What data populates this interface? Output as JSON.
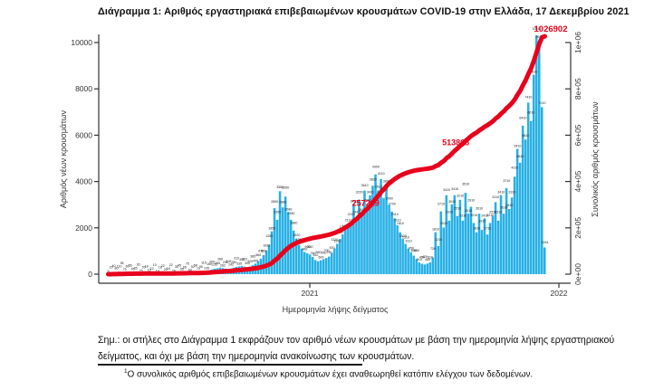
{
  "page": {
    "title": "Διάγραμμα 1: Αριθμός εργαστηριακά επιβεβαιωμένων κρουσμάτων COVID-19 στην Ελλάδα, 17 Δεκεμβρίου 2021",
    "note": "Σημ.: οι στήλες στο Διάγραμμα 1 εκφράζουν τον αριθμό νέων κρουσμάτων με βάση την ημερομηνία λήψης εργαστηριακού δείγματος, και όχι με βάση την ημερομηνία ανακοίνωσης των κρουσμάτων.",
    "footnote_sup": "1",
    "footnote_text": "Ο συνολικός αριθμός επιβεβαιωμένων κρουσμάτων έχει αναθεωρηθεί κατόπιν ελέγχου των δεδομένων."
  },
  "colors": {
    "bar": "#28b0e6",
    "line": "#e8001c",
    "bar_label": "#1a1a1a",
    "axis_text": "#333333",
    "axis_line": "#333333",
    "annotation": "#e8001c"
  },
  "chart_data": {
    "type": "bar+line",
    "xlabel": "Ημερομηνία λήψης δείγματος",
    "ylabel_left": "Αριθμός νέων κρουσμάτων",
    "ylabel_right": "Συνολικός αριθμός κρουσμάτων",
    "x_axis": {
      "ticks": [
        "2021",
        "2022"
      ]
    },
    "left_axis": {
      "max": 10000,
      "ticks": [
        "0",
        "2000",
        "4000",
        "6000",
        "8000",
        "10000"
      ]
    },
    "right_axis": {
      "max": 1000000,
      "ticks": [
        "0e+00",
        "2e+05",
        "4e+05",
        "6e+05",
        "8e+05",
        "1e+06"
      ]
    },
    "bars": {
      "name": "daily-new-cases-by-sampling-date",
      "period": "2020-03 to 2021-12-17",
      "values": [
        5,
        15,
        40,
        80,
        110,
        95,
        75,
        60,
        55,
        45,
        35,
        30,
        25,
        20,
        18,
        15,
        12,
        10,
        14,
        18,
        22,
        20,
        18,
        22,
        28,
        35,
        45,
        55,
        65,
        75,
        60,
        52,
        58,
        70,
        90,
        115,
        135,
        160,
        200,
        235,
        255,
        280,
        262,
        240,
        218,
        242,
        280,
        312,
        335,
        350,
        322,
        300,
        325,
        385,
        455,
        560,
        670,
        820,
        1020,
        1260,
        1850,
        2850,
        2350,
        3580,
        2880,
        3350,
        2680,
        2350,
        1880,
        1520,
        1260,
        1100,
        960,
        900,
        850,
        740,
        610,
        560,
        600,
        650,
        700,
        760,
        920,
        1110,
        1310,
        1520,
        1720,
        1910,
        2110,
        2210,
        3020,
        2410,
        3220,
        2610,
        3610,
        2810,
        3410,
        3820,
        4309,
        3610,
        4110,
        3290,
        3890,
        2990,
        2700,
        2410,
        2110,
        1810,
        1520,
        1310,
        1110,
        950,
        800,
        650,
        510,
        450,
        420,
        455,
        510,
        720,
        1810,
        1210,
        2710,
        2010,
        3410,
        2310,
        3010,
        3410,
        2510,
        3210,
        2310,
        3510,
        2610,
        2910,
        2210,
        1810,
        2610,
        1910,
        2410,
        1710,
        2210,
        2510,
        3110,
        2310,
        3410,
        2610,
        3710,
        2810,
        3310,
        4210,
        5410,
        4810,
        6410,
        5810,
        7410,
        6610,
        8610,
        10310,
        9910,
        7210,
        1154
      ]
    },
    "cumulative_line": {
      "name": "total-confirmed-cases",
      "final_value": 1026902
    },
    "annotations": [
      {
        "text": "257219",
        "value": 257219,
        "style": "under-line"
      },
      {
        "text": "513868",
        "value": 513868,
        "style": "under-line"
      },
      {
        "text": "1026902",
        "value": 1026902,
        "style": "terminal"
      }
    ]
  }
}
